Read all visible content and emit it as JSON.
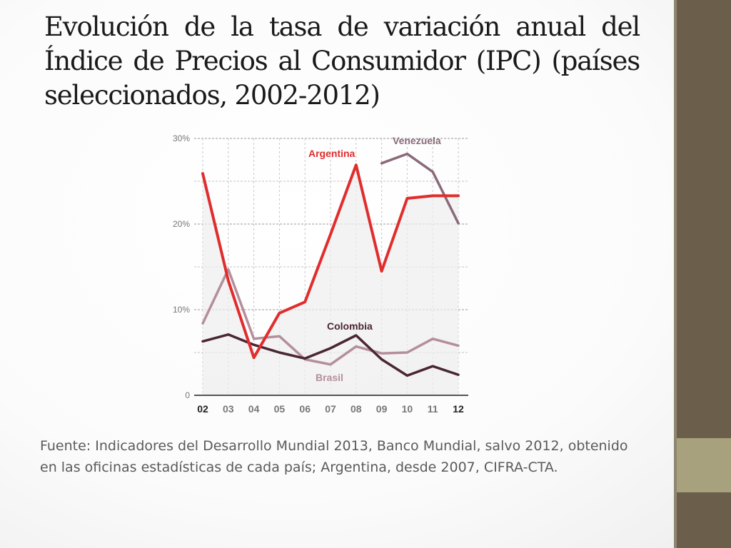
{
  "slide": {
    "title": "Evolución de la tasa de variación anual del Índice de Precios al Consumidor (IPC) (países seleccionados, 2002-2012)",
    "source": "Fuente: Indicadores del Desarrollo Mundial 2013, Banco Mundial, salvo 2012, obtenido en las oficinas estadísticas de cada país; Argentina, desde 2007, CIFRA-CTA."
  },
  "theme": {
    "side_bar": "#6b5f4c",
    "side_accent": "#a7a17d"
  },
  "chart_data": {
    "type": "line",
    "categories": [
      "02",
      "03",
      "04",
      "05",
      "06",
      "07",
      "08",
      "09",
      "10",
      "11",
      "12"
    ],
    "bold_categories": [
      "02",
      "12"
    ],
    "y_ticks": [
      {
        "value": 30,
        "label": "30%"
      },
      {
        "value": 20,
        "label": "20%"
      },
      {
        "value": 10,
        "label": "10%"
      },
      {
        "value": 0,
        "label": "0"
      }
    ],
    "ylim": [
      0,
      30
    ],
    "grid": true,
    "series": [
      {
        "name": "Venezuela",
        "color": "#8a6a7a",
        "values": [
          null,
          null,
          null,
          null,
          null,
          null,
          null,
          27.1,
          28.2,
          26.1,
          20.1
        ]
      },
      {
        "name": "Argentina",
        "color": "#e02d2d",
        "values": [
          25.9,
          13.4,
          4.4,
          9.6,
          10.9,
          18.8,
          26.9,
          14.5,
          23.0,
          23.3,
          23.3
        ]
      },
      {
        "name": "Colombia",
        "color": "#4a2632",
        "values": [
          6.3,
          7.1,
          5.9,
          5.0,
          4.3,
          5.5,
          7.0,
          4.2,
          2.3,
          3.4,
          2.4
        ]
      },
      {
        "name": "Brasil",
        "color": "#b48e9c",
        "values": [
          8.4,
          14.7,
          6.6,
          6.9,
          4.2,
          3.6,
          5.7,
          4.9,
          5.0,
          6.6,
          5.8
        ]
      }
    ]
  }
}
